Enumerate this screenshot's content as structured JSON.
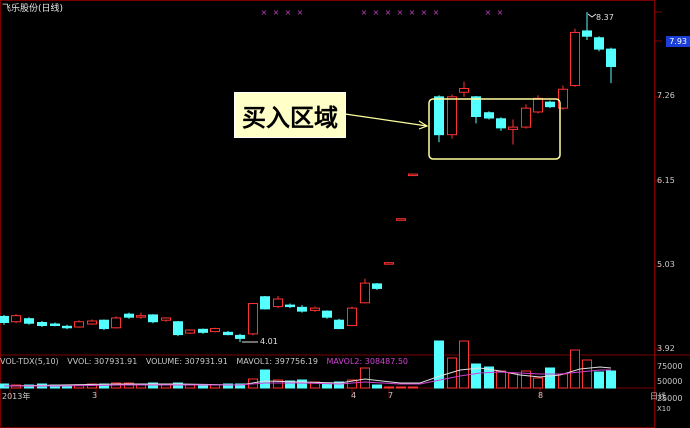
{
  "window": {
    "title": "飞乐股份(日线)"
  },
  "annotation": {
    "text": "买入区域"
  },
  "price_tag": "7.93",
  "markers": {
    "high": "8.37",
    "low": "4.01"
  },
  "volume_panel": {
    "items": [
      {
        "label": "VOL-TDX(5,10)",
        "color": "#c8c8c8"
      },
      {
        "label": "VVOL: 307931.91",
        "color": "#e0e0e0"
      },
      {
        "label": "VOLUME: 307931.91",
        "color": "#e0e0e0"
      },
      {
        "label": "MAVOL1: 397756.19",
        "color": "#e0e0e0"
      },
      {
        "label": "MAVOL2: 308487.50",
        "color": "#d040d0"
      }
    ]
  },
  "colors": {
    "up": "#ff3232",
    "down": "#54ffff",
    "grid": "#7a0000",
    "ma2": "#d040d0",
    "box": "#ffffa0"
  },
  "chart_data": {
    "type": "candlestick",
    "y_ticks": [
      "8.37",
      "7.93",
      "7.26",
      "6.15",
      "5.03",
      "3.92"
    ],
    "vol_ticks": [
      "75000",
      "50000",
      "25000"
    ],
    "vol_unit": "X10",
    "x_ticks": [
      "2013年",
      "3",
      "4",
      "7",
      "8",
      "日线"
    ],
    "ylim": [
      3.92,
      8.37
    ]
  }
}
